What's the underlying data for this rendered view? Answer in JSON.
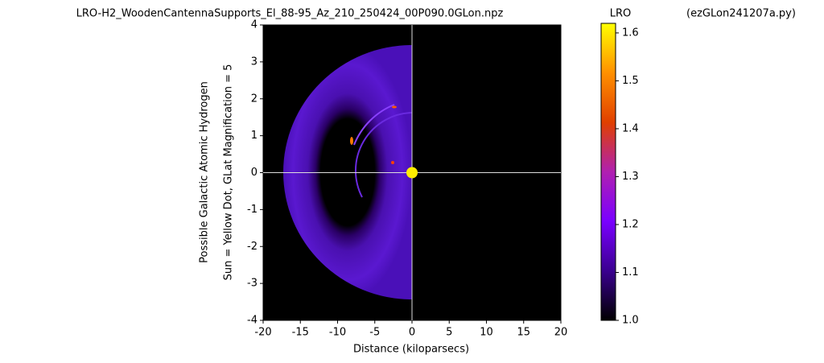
{
  "chart_data": {
    "type": "image",
    "title": "LRO-H2_WoodenCantennaSupports_El_88-95_Az_210_250424_00P090.0GLon.npz",
    "colorbar_title": "LRO",
    "annotation": "(ezGLon241207a.py)",
    "x_label": "Distance (kiloparsecs)",
    "y_label": [
      "Possible Galactic Atomic Hydrogen",
      "Sun = Yellow Dot, GLat Magnification = 5"
    ],
    "xlim": [
      -20,
      20
    ],
    "xticks": [
      -20,
      -15,
      -10,
      -5,
      0,
      5,
      10,
      15,
      20
    ],
    "ylim": [
      -4,
      4
    ],
    "yticks": [
      -4,
      -3,
      -2,
      -1,
      0,
      1,
      2,
      3,
      4
    ],
    "clim": [
      1,
      1.62
    ],
    "cticks": [
      {
        "value": 1,
        "label": "1.0"
      },
      1.1,
      1.2,
      1.3,
      1.4,
      1.5,
      1.6
    ],
    "colormap": "gnuplot",
    "points": {
      "x": [
        0
      ],
      "y": [
        0
      ],
      "color": "#ffee00"
    }
  }
}
